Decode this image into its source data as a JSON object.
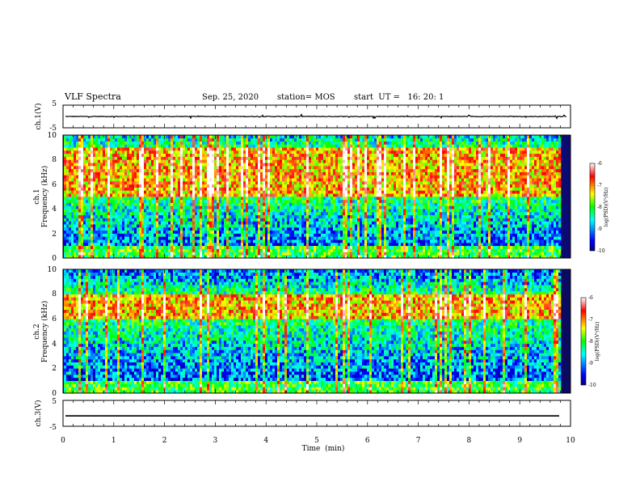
{
  "header": {
    "title": "VLF Spectra",
    "date": "Sep. 25, 2020",
    "station": "station= MOS",
    "start": "start  UT =   16: 20: 1"
  },
  "chart_data": [
    {
      "type": "line",
      "name": "ch1-waveform",
      "ylabel": "ch.1(V)",
      "ylim": [
        -5,
        5
      ],
      "yticks": [
        {
          "v": 5,
          "label": "5"
        },
        {
          "v": -5,
          "label": "-5"
        }
      ],
      "baseline": 0,
      "noise_amplitude": 0.3
    },
    {
      "type": "heatmap",
      "name": "ch1-spectrogram",
      "ylabel_lines": [
        "ch.1",
        "Frequency (kHz)"
      ],
      "ylim": [
        0,
        10
      ],
      "yticks": [
        "0",
        "2",
        "4",
        "6",
        "8",
        "10"
      ],
      "dominant_band_khz": [
        5,
        9
      ],
      "colorbar": {
        "label": "log(PSD)(V²/Hz)",
        "range": [
          -10,
          -6
        ],
        "ticks": [
          "-6",
          "-7",
          "-8",
          "-9",
          "-10"
        ]
      }
    },
    {
      "type": "heatmap",
      "name": "ch2-spectrogram",
      "ylabel_lines": [
        "ch.2",
        "Frequency (kHz)"
      ],
      "ylim": [
        0,
        10
      ],
      "yticks": [
        "0",
        "2",
        "4",
        "6",
        "8",
        "10"
      ],
      "dominant_band_khz": [
        6,
        8
      ],
      "colorbar": {
        "label": "log(PSD)(V²/Hz)",
        "range": [
          -10,
          -6
        ],
        "ticks": [
          "-6",
          "-7",
          "-8",
          "-9",
          "-10"
        ]
      }
    },
    {
      "type": "line",
      "name": "ch3-waveform",
      "ylabel": "ch.3(V)",
      "ylim": [
        -5,
        5
      ],
      "yticks": [
        {
          "v": 5,
          "label": "5"
        },
        {
          "v": -5,
          "label": "-5"
        }
      ],
      "baseline": -1,
      "noise_amplitude": 0
    }
  ],
  "xaxis": {
    "label": "Time  (min)",
    "xlim": [
      0,
      10
    ],
    "ticks": [
      "0",
      "1",
      "2",
      "3",
      "4",
      "5",
      "6",
      "7",
      "8",
      "9",
      "10"
    ]
  },
  "colors": {
    "colormap": [
      "#000080",
      "#0000ff",
      "#00ffff",
      "#00ff00",
      "#ffff00",
      "#ff0000",
      "#ffffff"
    ],
    "ch1_bg": "#0a0a70",
    "ch2_bg": "#0a0a60"
  }
}
